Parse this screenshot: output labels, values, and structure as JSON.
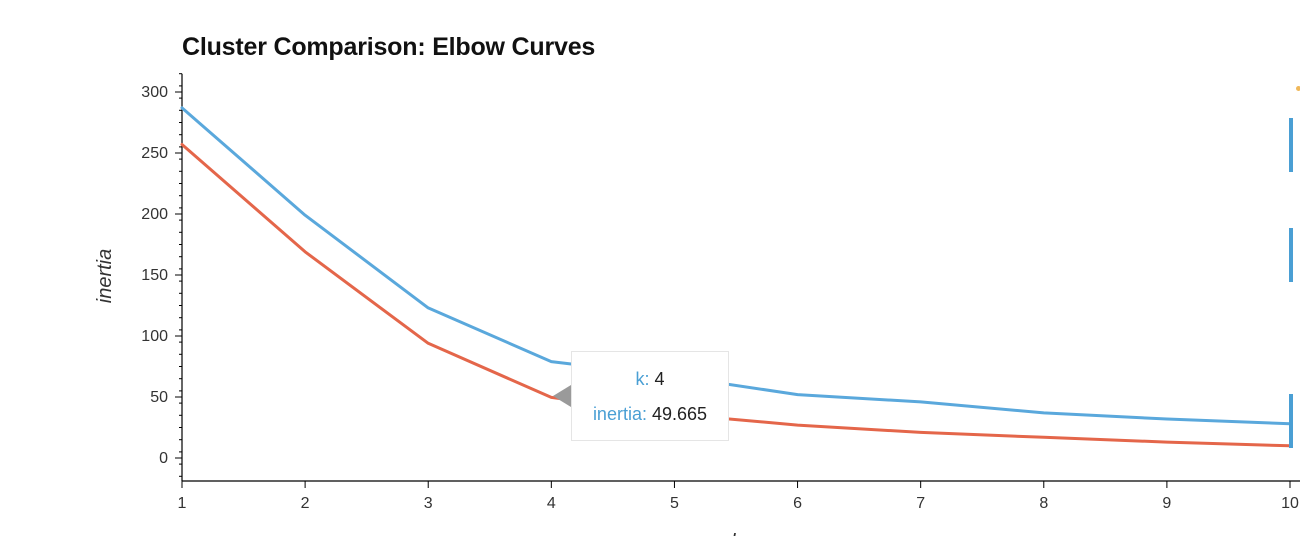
{
  "chart_data": {
    "type": "line",
    "title": "Cluster Comparison: Elbow Curves",
    "xlabel": "k",
    "ylabel": "inertia",
    "xlim": [
      1,
      10
    ],
    "ylim": [
      -20,
      315
    ],
    "x_ticks": [
      1,
      2,
      3,
      4,
      5,
      6,
      7,
      8,
      9,
      10
    ],
    "y_ticks": [
      0,
      50,
      100,
      150,
      200,
      250,
      300
    ],
    "grid": false,
    "series": [
      {
        "color": "#5aa8dc",
        "x": [
          1,
          2,
          3,
          4,
          5,
          6,
          7,
          8,
          9,
          10
        ],
        "y": [
          287,
          199,
          123,
          79,
          67,
          52,
          46,
          37,
          32,
          28
        ]
      },
      {
        "color": "#e4664a",
        "x": [
          1,
          2,
          3,
          4,
          5,
          6,
          7,
          8,
          9,
          10
        ],
        "y": [
          257,
          169,
          94,
          49.665,
          36,
          27,
          21,
          17,
          13,
          10
        ]
      }
    ],
    "tooltip": {
      "k_key": "k:",
      "k_val": "4",
      "inertia_key": "inertia:",
      "inertia_val": "49.665"
    }
  }
}
